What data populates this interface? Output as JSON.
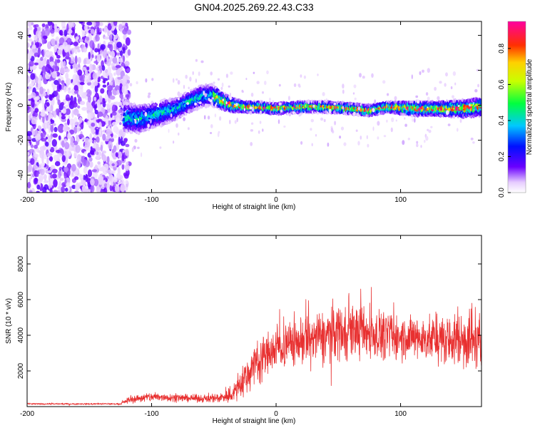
{
  "title": "GN04.2025.269.22.43.C33",
  "chart_data": [
    {
      "type": "heatmap",
      "xlabel": "Height of straight line (km)",
      "ylabel": "Frequency (Hz)",
      "xlim": [
        -200,
        165
      ],
      "ylim": [
        -50,
        48
      ],
      "xticks": [
        -200,
        -100,
        0,
        100
      ],
      "yticks": [
        -40,
        -20,
        0,
        20,
        40
      ],
      "noise_region_x": [
        -200,
        -120
      ],
      "ridge": {
        "x": [
          -120,
          -110,
          -100,
          -90,
          -80,
          -70,
          -60,
          -52,
          -45,
          -35,
          -25,
          -15,
          0,
          20,
          40,
          60,
          75,
          90,
          110,
          130,
          150,
          165
        ],
        "freq": [
          -7,
          -8,
          -6,
          -4,
          -2,
          2,
          5,
          6,
          3,
          0,
          -1,
          -1,
          -2,
          -1,
          -1,
          -2,
          -3,
          -1,
          -2,
          -2,
          -2,
          -1
        ],
        "spread_hz": [
          8,
          8,
          7,
          7,
          6,
          6,
          6,
          6,
          5,
          4,
          3,
          3,
          3,
          3,
          3,
          3,
          3,
          3,
          4,
          4,
          5,
          5
        ]
      },
      "colorbar": {
        "label": "Normalized spectral amplitude",
        "range": [
          0.0,
          0.95
        ],
        "ticks": [
          "0.0",
          "0.2",
          "0.4",
          "0.6",
          "0.8"
        ]
      }
    },
    {
      "type": "line",
      "xlabel": "Height of straight line (km)",
      "ylabel": "SNR (10 * v/v)",
      "xlim": [
        -200,
        165
      ],
      "ylim": [
        0,
        9600
      ],
      "xticks": [
        -200,
        -100,
        0,
        100
      ],
      "yticks": [
        2000,
        4000,
        6000,
        8000
      ],
      "color": "#e83030",
      "envelope": {
        "x": [
          -200,
          -125,
          -118,
          -100,
          -80,
          -60,
          -45,
          -35,
          -25,
          -15,
          0,
          20,
          40,
          50,
          60,
          80,
          100,
          120,
          140,
          155,
          165
        ],
        "mean": [
          150,
          150,
          400,
          550,
          500,
          450,
          500,
          700,
          1600,
          2600,
          3300,
          3700,
          4000,
          4300,
          4300,
          4100,
          3900,
          3800,
          3700,
          3900,
          3500
        ],
        "amp": [
          60,
          60,
          250,
          400,
          300,
          300,
          400,
          700,
          1500,
          1800,
          1800,
          2000,
          2100,
          2400,
          2200,
          2000,
          1800,
          1800,
          2000,
          2800,
          2600
        ]
      }
    }
  ]
}
